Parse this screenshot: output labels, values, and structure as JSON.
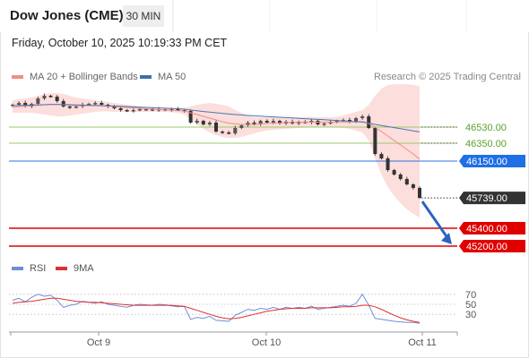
{
  "header": {
    "title": "Dow Jones (CME)",
    "timeframe": "30 MIN",
    "timestamp": "Friday, October 10, 2025 10:19:33 PM CET",
    "copyright": "Research © 2025 Trading Central"
  },
  "legend": {
    "items": [
      {
        "label": "MA 20 + Bollinger Bands",
        "color": "#f08c84"
      },
      {
        "label": "MA 50",
        "color": "#3f6fab"
      }
    ]
  },
  "rsi_legend": {
    "items": [
      {
        "label": "RSI",
        "color": "#6d8fd8"
      },
      {
        "label": "9MA",
        "color": "#e03030"
      }
    ]
  },
  "chart_data": [
    {
      "type": "candlestick",
      "ylim": [
        44950,
        47050
      ],
      "levels": [
        {
          "value": 46530,
          "label": "46530.00",
          "role": "resistance",
          "color": "#9cc96b",
          "text_color": "#5aa02c"
        },
        {
          "value": 46350,
          "label": "46350.00",
          "role": "resistance",
          "color": "#9cc96b",
          "text_color": "#5aa02c"
        },
        {
          "value": 46150,
          "label": "46150.00",
          "role": "pivot",
          "color": "#2f6fe0",
          "tag_color": "#1f6fe5"
        },
        {
          "value": 45739,
          "label": "45739.00",
          "role": "last",
          "tag_color": "#333333"
        },
        {
          "value": 45400,
          "label": "45400.00",
          "role": "support",
          "color": "#e00000",
          "tag_color": "#e00000"
        },
        {
          "value": 45200,
          "label": "45200.00",
          "role": "support",
          "color": "#e00000",
          "tag_color": "#e00000"
        }
      ],
      "close_series": [
        46780,
        46800,
        46760,
        46790,
        46850,
        46880,
        46870,
        46820,
        46760,
        46750,
        46760,
        46780,
        46790,
        46800,
        46780,
        46760,
        46740,
        46720,
        46710,
        46720,
        46730,
        46730,
        46720,
        46730,
        46720,
        46730,
        46720,
        46710,
        46580,
        46600,
        46560,
        46580,
        46480,
        46470,
        46460,
        46520,
        46550,
        46580,
        46560,
        46600,
        46580,
        46600,
        46570,
        46590,
        46570,
        46590,
        46580,
        46600,
        46560,
        46570,
        46590,
        46600,
        46610,
        46590,
        46630,
        46650,
        46520,
        46230,
        46180,
        46050,
        46000,
        45950,
        45890,
        45850,
        45739
      ],
      "ma20": [
        46750,
        46760,
        46765,
        46770,
        46775,
        46780,
        46785,
        46785,
        46780,
        46775,
        46770,
        46770,
        46770,
        46770,
        46768,
        46765,
        46760,
        46755,
        46750,
        46745,
        46740,
        46735,
        46730,
        46726,
        46722,
        46718,
        46714,
        46710,
        46690,
        46670,
        46650,
        46630,
        46610,
        46590,
        46575,
        46565,
        46560,
        46560,
        46560,
        46565,
        46570,
        46575,
        46578,
        46580,
        46582,
        46584,
        46586,
        46586,
        46585,
        46584,
        46584,
        46585,
        46586,
        46587,
        46590,
        46592,
        46570,
        46530,
        46480,
        46430,
        46380,
        46330,
        46280,
        46230,
        46170
      ],
      "bb_upper": [
        46830,
        46840,
        46850,
        46860,
        46880,
        46900,
        46910,
        46910,
        46900,
        46880,
        46860,
        46850,
        46840,
        46830,
        46820,
        46810,
        46800,
        46790,
        46780,
        46770,
        46760,
        46755,
        46750,
        46748,
        46746,
        46745,
        46745,
        46745,
        46760,
        46780,
        46790,
        46800,
        46790,
        46780,
        46760,
        46720,
        46690,
        46660,
        46640,
        46640,
        46640,
        46640,
        46640,
        46640,
        46640,
        46640,
        46645,
        46645,
        46640,
        46640,
        46640,
        46645,
        46660,
        46680,
        46700,
        46720,
        46780,
        46880,
        46960,
        47000,
        47010,
        47010,
        47010,
        47000,
        46990
      ],
      "bb_lower": [
        46690,
        46690,
        46690,
        46690,
        46680,
        46670,
        46660,
        46650,
        46650,
        46660,
        46670,
        46680,
        46690,
        46700,
        46705,
        46705,
        46700,
        46700,
        46700,
        46700,
        46700,
        46700,
        46700,
        46700,
        46700,
        46695,
        46690,
        46670,
        46620,
        46560,
        46510,
        46470,
        46440,
        46420,
        46410,
        46410,
        46420,
        46440,
        46460,
        46480,
        46490,
        46500,
        46505,
        46510,
        46515,
        46520,
        46525,
        46525,
        46525,
        46525,
        46525,
        46525,
        46520,
        46510,
        46490,
        46470,
        46380,
        46180,
        46000,
        45860,
        45760,
        45680,
        45610,
        45560,
        45520
      ],
      "ma50": [
        46770,
        46772,
        46774,
        46776,
        46778,
        46780,
        46782,
        46783,
        46782,
        46780,
        46778,
        46776,
        46774,
        46772,
        46770,
        46768,
        46765,
        46762,
        46759,
        46756,
        46753,
        46750,
        46747,
        46744,
        46741,
        46738,
        46735,
        46730,
        46720,
        46712,
        46704,
        46697,
        46690,
        46683,
        46676,
        46670,
        46665,
        46660,
        46656,
        46652,
        46648,
        46644,
        46640,
        46636,
        46632,
        46628,
        46624,
        46620,
        46616,
        46612,
        46608,
        46604,
        46600,
        46595,
        46590,
        46586,
        46575,
        46560,
        46548,
        46536,
        46524,
        46512,
        46500,
        46488,
        46476
      ],
      "projection": {
        "from": 45739,
        "to": 45200
      }
    },
    {
      "type": "line",
      "name": "RSI",
      "ylim": [
        0,
        100
      ],
      "ticks": [
        "70",
        "50",
        "30"
      ],
      "tick_values": [
        70,
        50,
        30
      ],
      "x_tick_labels": [
        "Oct 9",
        "Oct 10",
        "Oct 11"
      ],
      "rsi": [
        58,
        62,
        55,
        64,
        70,
        66,
        68,
        58,
        44,
        48,
        50,
        56,
        54,
        52,
        55,
        50,
        48,
        46,
        44,
        48,
        50,
        49,
        48,
        50,
        49,
        47,
        45,
        46,
        20,
        24,
        22,
        26,
        18,
        17,
        16,
        28,
        34,
        40,
        38,
        42,
        40,
        44,
        40,
        44,
        42,
        44,
        42,
        46,
        40,
        42,
        44,
        46,
        48,
        46,
        52,
        70,
        48,
        22,
        20,
        18,
        16,
        15,
        14,
        14,
        12
      ],
      "rsi_ma": [
        52,
        54,
        55,
        56,
        58,
        60,
        62,
        62,
        60,
        58,
        56,
        55,
        54,
        54,
        53,
        52,
        51,
        50,
        49,
        48,
        48,
        48,
        48,
        48,
        48,
        48,
        47,
        46,
        42,
        38,
        34,
        30,
        26,
        23,
        21,
        22,
        24,
        27,
        30,
        33,
        36,
        38,
        40,
        41,
        42,
        42,
        42,
        43,
        43,
        43,
        43,
        44,
        45,
        45,
        46,
        48,
        48,
        45,
        40,
        34,
        28,
        23,
        19,
        16,
        14
      ]
    }
  ]
}
